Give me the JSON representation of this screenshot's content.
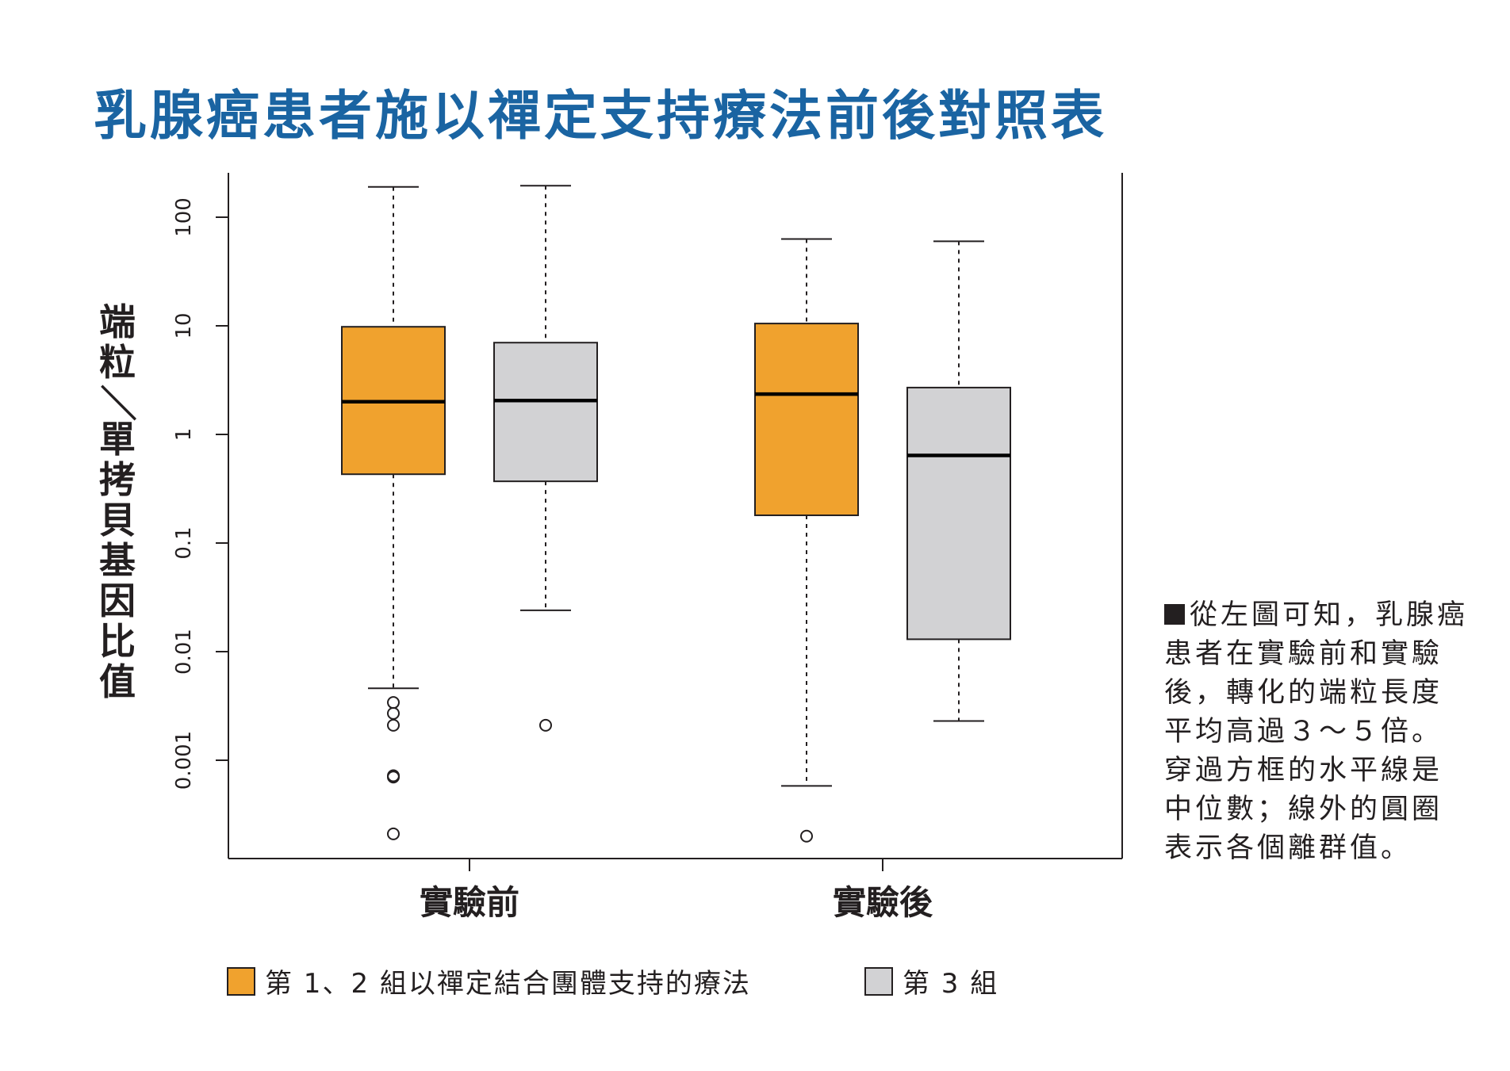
{
  "title": "乳腺癌患者施以禪定支持療法前後對照表",
  "note_text": "從左圖可知，乳腺癌患者在實驗前和實驗後，轉化的端粒長度平均高過３～５倍。穿過方框的水平線是中位數；線外的圓圈表示各個離群值。",
  "colors": {
    "title": "#1a64a2",
    "group12": "#f0a22e",
    "group3": "#d2d2d4",
    "ink": "#231f20"
  },
  "legend": [
    {
      "label": "第 1、2 組以禪定結合團體支持的療法",
      "color": "#f0a22e"
    },
    {
      "label": "第 3 組",
      "color": "#d2d2d4"
    }
  ],
  "chart_data": {
    "type": "box",
    "ylabel": "端粒／單拷貝基因比值",
    "yscale": "log",
    "yticks": [
      0.001,
      0.01,
      0.1,
      1,
      10,
      100
    ],
    "ytick_labels": [
      "0.001",
      "0.01",
      "0.1",
      "1",
      "10",
      "100"
    ],
    "ylim": [
      0.00014,
      300
    ],
    "categories": [
      "實驗前",
      "實驗後"
    ],
    "series": [
      {
        "name": "第 1、2 組以禪定結合團體支持的療法",
        "color": "#f0a22e",
        "boxes": [
          {
            "category": "實驗前",
            "whisker_low": 0.0046,
            "q1": 0.43,
            "median": 2.0,
            "q3": 9.8,
            "whisker_high": 190,
            "outliers": [
              0.0034,
              0.0027,
              0.0021,
              0.00072,
              0.0007,
              0.00021
            ]
          },
          {
            "category": "實驗後",
            "whisker_low": 0.00058,
            "q1": 0.18,
            "median": 2.35,
            "q3": 10.5,
            "whisker_high": 63,
            "outliers": [
              0.0002
            ]
          }
        ]
      },
      {
        "name": "第 3 組",
        "color": "#d2d2d4",
        "boxes": [
          {
            "category": "實驗前",
            "whisker_low": 0.024,
            "q1": 0.37,
            "median": 2.05,
            "q3": 7.0,
            "whisker_high": 195,
            "outliers": [
              0.0021
            ]
          },
          {
            "category": "實驗後",
            "whisker_low": 0.0023,
            "q1": 0.013,
            "median": 0.64,
            "q3": 2.7,
            "whisker_high": 60,
            "outliers": []
          }
        ]
      }
    ]
  }
}
